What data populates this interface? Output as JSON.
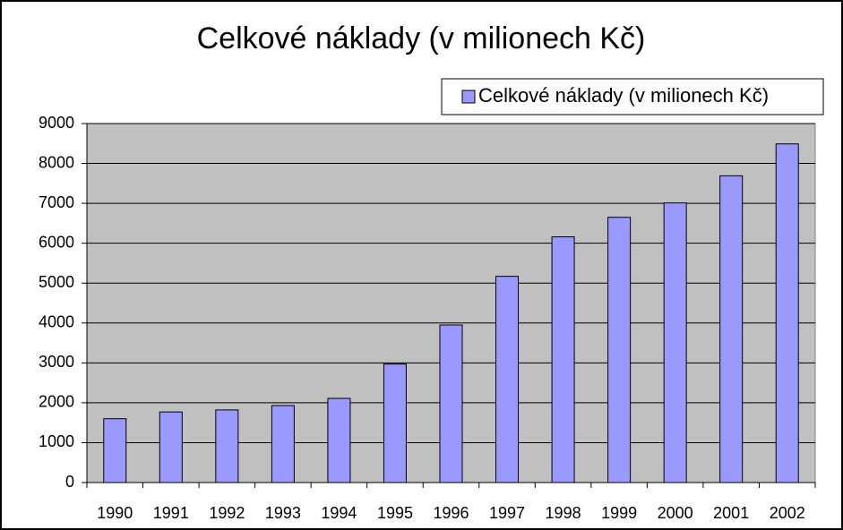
{
  "chart_data": {
    "type": "bar",
    "title": "Celkové náklady (v milionech Kč)",
    "categories": [
      "1990",
      "1991",
      "1992",
      "1993",
      "1994",
      "1995",
      "1996",
      "1997",
      "1998",
      "1999",
      "2000",
      "2001",
      "2002"
    ],
    "series": [
      {
        "name": "Celkové náklady (v milionech Kč)",
        "color": "#9999ff",
        "values": [
          1600,
          1770,
          1820,
          1930,
          2110,
          2970,
          3950,
          5170,
          6160,
          6650,
          7010,
          7690,
          8490
        ]
      }
    ],
    "ylim": [
      0,
      9000
    ],
    "yticks": [
      0,
      1000,
      2000,
      3000,
      4000,
      5000,
      6000,
      7000,
      8000,
      9000
    ],
    "grid": true,
    "legend": "top-right"
  }
}
